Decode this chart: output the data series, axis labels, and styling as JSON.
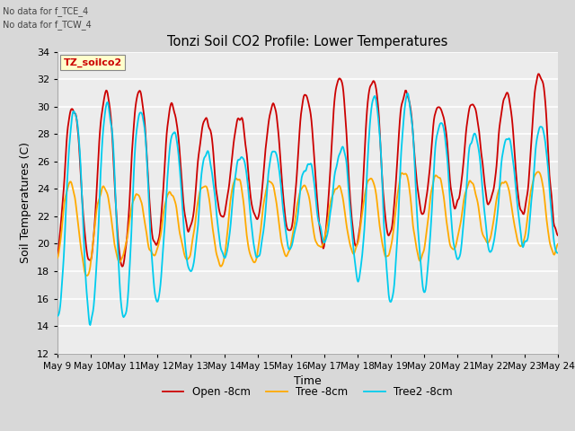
{
  "title": "Tonzi Soil CO2 Profile: Lower Temperatures",
  "xlabel": "Time",
  "ylabel": "Soil Temperatures (C)",
  "note_lines": [
    "No data for f_TCE_4",
    "No data for f_TCW_4"
  ],
  "legend_label": "TZ_soilco2",
  "series_labels": [
    "Open -8cm",
    "Tree -8cm",
    "Tree2 -8cm"
  ],
  "series_colors": [
    "#cc0000",
    "#ffaa00",
    "#00ccee"
  ],
  "ylim": [
    12,
    34
  ],
  "yticks": [
    12,
    14,
    16,
    18,
    20,
    22,
    24,
    26,
    28,
    30,
    32,
    34
  ],
  "x_start_day": 9,
  "x_end_day": 24,
  "xtick_days": [
    9,
    10,
    11,
    12,
    13,
    14,
    15,
    16,
    17,
    18,
    19,
    20,
    21,
    22,
    23,
    24
  ],
  "bg_color": "#d8d8d8",
  "plot_bg_color": "#ececec",
  "grid_color": "#ffffff",
  "lw": 1.3
}
